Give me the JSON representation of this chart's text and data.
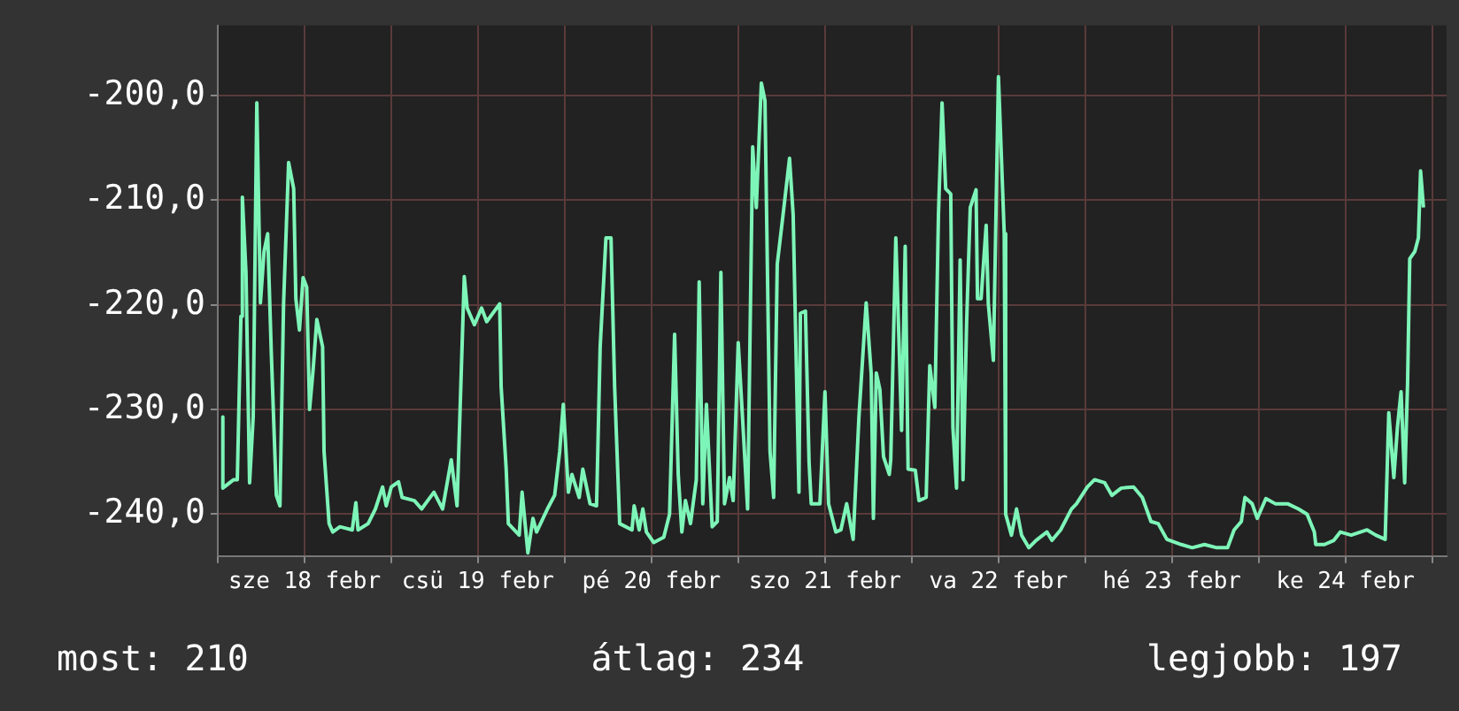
{
  "chart_data": {
    "type": "line",
    "annotations": [
      "most: 210",
      "átlag: 234",
      "legjobb: 197"
    ],
    "xlim": [
      "--02-18T00:00",
      "--02-25T02:00"
    ],
    "xticks": [
      {
        "value": "--02-18T00:00",
        "label": null
      },
      {
        "value": "--02-18T12:00",
        "label": "sze 18 febr"
      },
      {
        "value": "--02-19T00:00",
        "label": null
      },
      {
        "value": "--02-19T12:00",
        "label": "csü 19 febr"
      },
      {
        "value": "--02-20T00:00",
        "label": null
      },
      {
        "value": "--02-20T12:00",
        "label": "pé 20 febr"
      },
      {
        "value": "--02-21T00:00",
        "label": null
      },
      {
        "value": "--02-21T12:00",
        "label": "szo 21 febr"
      },
      {
        "value": "--02-22T00:00",
        "label": null
      },
      {
        "value": "--02-22T12:00",
        "label": "va 22 febr"
      },
      {
        "value": "--02-23T00:00",
        "label": null
      },
      {
        "value": "--02-23T12:00",
        "label": "hé 23 febr"
      },
      {
        "value": "--02-24T00:00",
        "label": null
      },
      {
        "value": "--02-24T12:00",
        "label": "ke 24 febr"
      },
      {
        "value": "--02-25T00:00",
        "label": null
      }
    ],
    "ylim": [
      -244,
      -193.3
    ],
    "yticks": [
      {
        "value": -240,
        "label": "-240,0"
      },
      {
        "value": -230,
        "label": "-230,0"
      },
      {
        "value": -220,
        "label": "-220,0"
      },
      {
        "value": -210,
        "label": "-210,0"
      },
      {
        "value": -200,
        "label": "-200,0"
      }
    ],
    "grid": true,
    "marker": "none",
    "line_style": "solid",
    "series": [
      {
        "color": "#7ef5b8",
        "x": [
          "--02-18T00:42",
          "--02-18T00:42",
          "--02-18T02:12",
          "--02-18T02:42",
          "--02-18T03:12",
          "--02-18T03:24",
          "--02-18T03:54",
          "--02-18T04:24",
          "--02-18T04:54",
          "--02-18T05:24",
          "--02-18T05:54",
          "--02-18T06:24",
          "--02-18T06:54",
          "--02-18T07:24",
          "--02-18T08:06",
          "--02-18T08:36",
          "--02-18T09:06",
          "--02-18T09:48",
          "--02-18T10:30",
          "--02-18T10:48",
          "--02-18T11:18",
          "--02-18T11:48",
          "--02-18T12:18",
          "--02-18T12:42",
          "--02-18T13:12",
          "--02-18T13:42",
          "--02-18T14:30",
          "--02-18T14:42",
          "--02-18T15:24",
          "--02-18T15:54",
          "--02-18T16:54",
          "--02-18T18:36",
          "--02-18T19:06",
          "--02-18T19:24",
          "--02-18T20:48",
          "--02-18T21:48",
          "--02-18T22:48",
          "--02-18T23:18",
          "--02-19T00:00",
          "--02-19T01:00",
          "--02-19T01:30",
          "--02-19T03:12",
          "--02-19T04:12",
          "--02-19T05:54",
          "--02-19T07:06",
          "--02-19T08:18",
          "--02-19T09:06",
          "--02-19T10:06",
          "--02-19T10:30",
          "--02-19T11:30",
          "--02-19T12:30",
          "--02-19T13:12",
          "--02-19T15:00",
          "--02-19T15:12",
          "--02-19T15:54",
          "--02-19T16:12",
          "--02-19T17:42",
          "--02-19T18:06",
          "--02-19T18:54",
          "--02-19T19:36",
          "--02-19T20:06",
          "--02-19T21:36",
          "--02-19T22:36",
          "--02-19T23:18",
          "--02-19T23:48",
          "--02-20T00:30",
          "--02-20T01:00",
          "--02-20T02:00",
          "--02-20T02:30",
          "--02-20T03:30",
          "--02-20T04:24",
          "--02-20T04:54",
          "--02-20T05:42",
          "--02-20T06:24",
          "--02-20T06:54",
          "--02-20T07:36",
          "--02-20T09:18",
          "--02-20T09:36",
          "--02-20T10:18",
          "--02-20T10:48",
          "--02-20T11:18",
          "--02-20T12:18",
          "--02-20T13:42",
          "--02-20T14:30",
          "--02-20T15:12",
          "--02-20T15:42",
          "--02-20T16:12",
          "--02-20T16:42",
          "--02-20T17:24",
          "--02-20T18:12",
          "--02-20T18:36",
          "--02-20T19:06",
          "--02-20T19:36",
          "--02-20T20:24",
          "--02-20T21:06",
          "--02-20T21:36",
          "--02-20T22:06",
          "--02-20T22:48",
          "--02-20T23:18",
          "--02-21T00:00",
          "--02-21T00:48",
          "--02-21T01:18",
          "--02-21T02:00",
          "--02-21T02:30",
          "--02-21T03:12",
          "--02-21T03:42",
          "--02-21T04:24",
          "--02-21T04:54",
          "--02-21T05:24",
          "--02-21T06:12",
          "--02-21T07:06",
          "--02-21T07:36",
          "--02-21T08:24",
          "--02-21T08:36",
          "--02-21T09:18",
          "--02-21T09:48",
          "--02-21T10:06",
          "--02-21T11:18",
          "--02-21T12:00",
          "--02-21T12:30",
          "--02-21T13:30",
          "--02-21T14:12",
          "--02-21T15:00",
          "--02-21T15:54",
          "--02-21T16:42",
          "--02-21T17:42",
          "--02-21T18:24",
          "--02-21T18:42",
          "--02-21T19:06",
          "--02-21T19:36",
          "--02-21T20:06",
          "--02-21T20:54",
          "--02-21T21:06",
          "--02-21T21:48",
          "--02-21T22:18",
          "--02-21T22:36",
          "--02-21T23:06",
          "--02-21T23:30",
          "--02-22T00:30",
          "--02-22T01:00",
          "--02-22T02:00",
          "--02-22T02:30",
          "--02-22T03:12",
          "--02-22T03:42",
          "--02-22T04:12",
          "--02-22T04:42",
          "--02-22T05:24",
          "--02-22T05:42",
          "--02-22T06:12",
          "--02-22T06:42",
          "--02-22T07:06",
          "--02-22T07:36",
          "--02-22T08:06",
          "--02-22T08:54",
          "--02-22T09:06",
          "--02-22T09:36",
          "--02-22T10:18",
          "--02-22T10:36",
          "--02-22T11:18",
          "--02-22T11:36",
          "--02-22T12:00",
          "--02-22T12:48",
          "--02-22T13:00",
          "--02-22T13:48",
          "--02-22T14:30",
          "--02-22T15:12",
          "--02-22T16:12",
          "--02-22T17:12",
          "--02-22T18:42",
          "--02-22T19:24",
          "--02-22T20:36",
          "--02-22T22:06",
          "--02-22T22:48",
          "--02-23T00:18",
          "--02-23T01:18",
          "--02-23T02:42",
          "--02-23T03:42",
          "--02-23T05:00",
          "--02-23T06:42",
          "--02-23T07:54",
          "--02-23T09:06",
          "--02-23T10:06",
          "--02-23T11:18",
          "--02-23T13:18",
          "--02-23T14:48",
          "--02-23T16:30",
          "--02-23T18:12",
          "--02-23T19:42",
          "--02-23T20:36",
          "--02-23T21:36",
          "--02-23T22:06",
          "--02-23T23:06",
          "--02-23T23:48",
          "--02-24T01:00",
          "--02-24T02:18",
          "--02-24T04:00",
          "--02-24T05:30",
          "--02-24T06:42",
          "--02-24T07:42",
          "--02-24T07:54",
          "--02-24T09:06",
          "--02-24T10:24",
          "--02-24T11:18",
          "--02-24T12:48",
          "--02-24T15:00",
          "--02-24T16:12",
          "--02-24T17:30",
          "--02-24T18:00",
          "--02-24T18:42",
          "--02-24T19:12",
          "--02-24T19:42",
          "--02-24T20:12",
          "--02-24T20:36",
          "--02-24T20:54",
          "--02-24T21:36",
          "--02-24T22:06",
          "--02-24T22:24",
          "--02-24T22:48"
        ],
        "values": [
          -230.7,
          -237.5,
          -236.7,
          -236.7,
          -221.1,
          -209.7,
          -216.9,
          -237.0,
          -230.7,
          -200.7,
          -219.8,
          -214.9,
          -213.2,
          -224.5,
          -238.2,
          -239.2,
          -219.9,
          -206.4,
          -208.9,
          -219.4,
          -222.4,
          -217.4,
          -218.3,
          -230.0,
          -226.1,
          -221.4,
          -224.0,
          -234.0,
          -240.9,
          -241.7,
          -241.2,
          -241.5,
          -238.9,
          -241.5,
          -240.9,
          -239.5,
          -237.4,
          -239.2,
          -237.4,
          -236.9,
          -238.4,
          -238.7,
          -239.5,
          -237.9,
          -239.5,
          -234.8,
          -239.2,
          -217.3,
          -220.3,
          -221.9,
          -220.3,
          -221.6,
          -219.9,
          -227.8,
          -235.7,
          -240.9,
          -242.0,
          -237.9,
          -243.7,
          -240.4,
          -241.7,
          -239.5,
          -238.2,
          -234.0,
          -229.5,
          -237.9,
          -236.2,
          -238.4,
          -235.7,
          -239.0,
          -239.2,
          -224.0,
          -213.6,
          -213.6,
          -227.8,
          -240.9,
          -241.5,
          -239.2,
          -241.5,
          -239.5,
          -241.7,
          -242.7,
          -242.2,
          -240.0,
          -222.8,
          -236.2,
          -241.7,
          -238.7,
          -240.9,
          -236.7,
          -217.8,
          -239.0,
          -229.5,
          -241.2,
          -240.7,
          -216.9,
          -239.0,
          -236.5,
          -238.7,
          -223.6,
          -233.3,
          -239.5,
          -204.9,
          -210.7,
          -198.8,
          -200.5,
          -234.0,
          -238.4,
          -216.1,
          -211.4,
          -206.0,
          -211.4,
          -237.9,
          -220.8,
          -220.6,
          -235.0,
          -239.0,
          -239.0,
          -228.3,
          -239.0,
          -241.7,
          -241.5,
          -239.0,
          -242.4,
          -230.7,
          -219.8,
          -226.6,
          -240.4,
          -226.5,
          -228.1,
          -234.5,
          -236.2,
          -234.8,
          -213.6,
          -224.8,
          -232.0,
          -214.4,
          -235.7,
          -235.8,
          -238.7,
          -238.4,
          -225.8,
          -229.8,
          -211.4,
          -200.7,
          -208.9,
          -209.4,
          -231.7,
          -237.5,
          -215.7,
          -236.7,
          -221.6,
          -210.7,
          -209.0,
          -219.4,
          -219.4,
          -212.4,
          -219.9,
          -225.3,
          -213.6,
          -198.2,
          -213.2,
          -240.0,
          -242.0,
          -239.5,
          -242.0,
          -243.2,
          -242.5,
          -241.7,
          -242.5,
          -241.5,
          -239.5,
          -239.0,
          -237.4,
          -236.7,
          -237.0,
          -238.2,
          -237.5,
          -237.4,
          -238.4,
          -240.7,
          -240.9,
          -242.4,
          -242.9,
          -243.2,
          -242.9,
          -243.2,
          -243.2,
          -241.5,
          -240.7,
          -238.4,
          -239.0,
          -240.4,
          -238.5,
          -239.0,
          -239.0,
          -239.5,
          -240.0,
          -241.7,
          -242.9,
          -242.9,
          -242.5,
          -241.7,
          -242.0,
          -241.5,
          -242.0,
          -242.4,
          -230.3,
          -236.5,
          -231.7,
          -228.3,
          -237.0,
          -227.5,
          -215.6,
          -214.9,
          -213.6,
          -207.2,
          -210.7
        ]
      }
    ]
  }
}
